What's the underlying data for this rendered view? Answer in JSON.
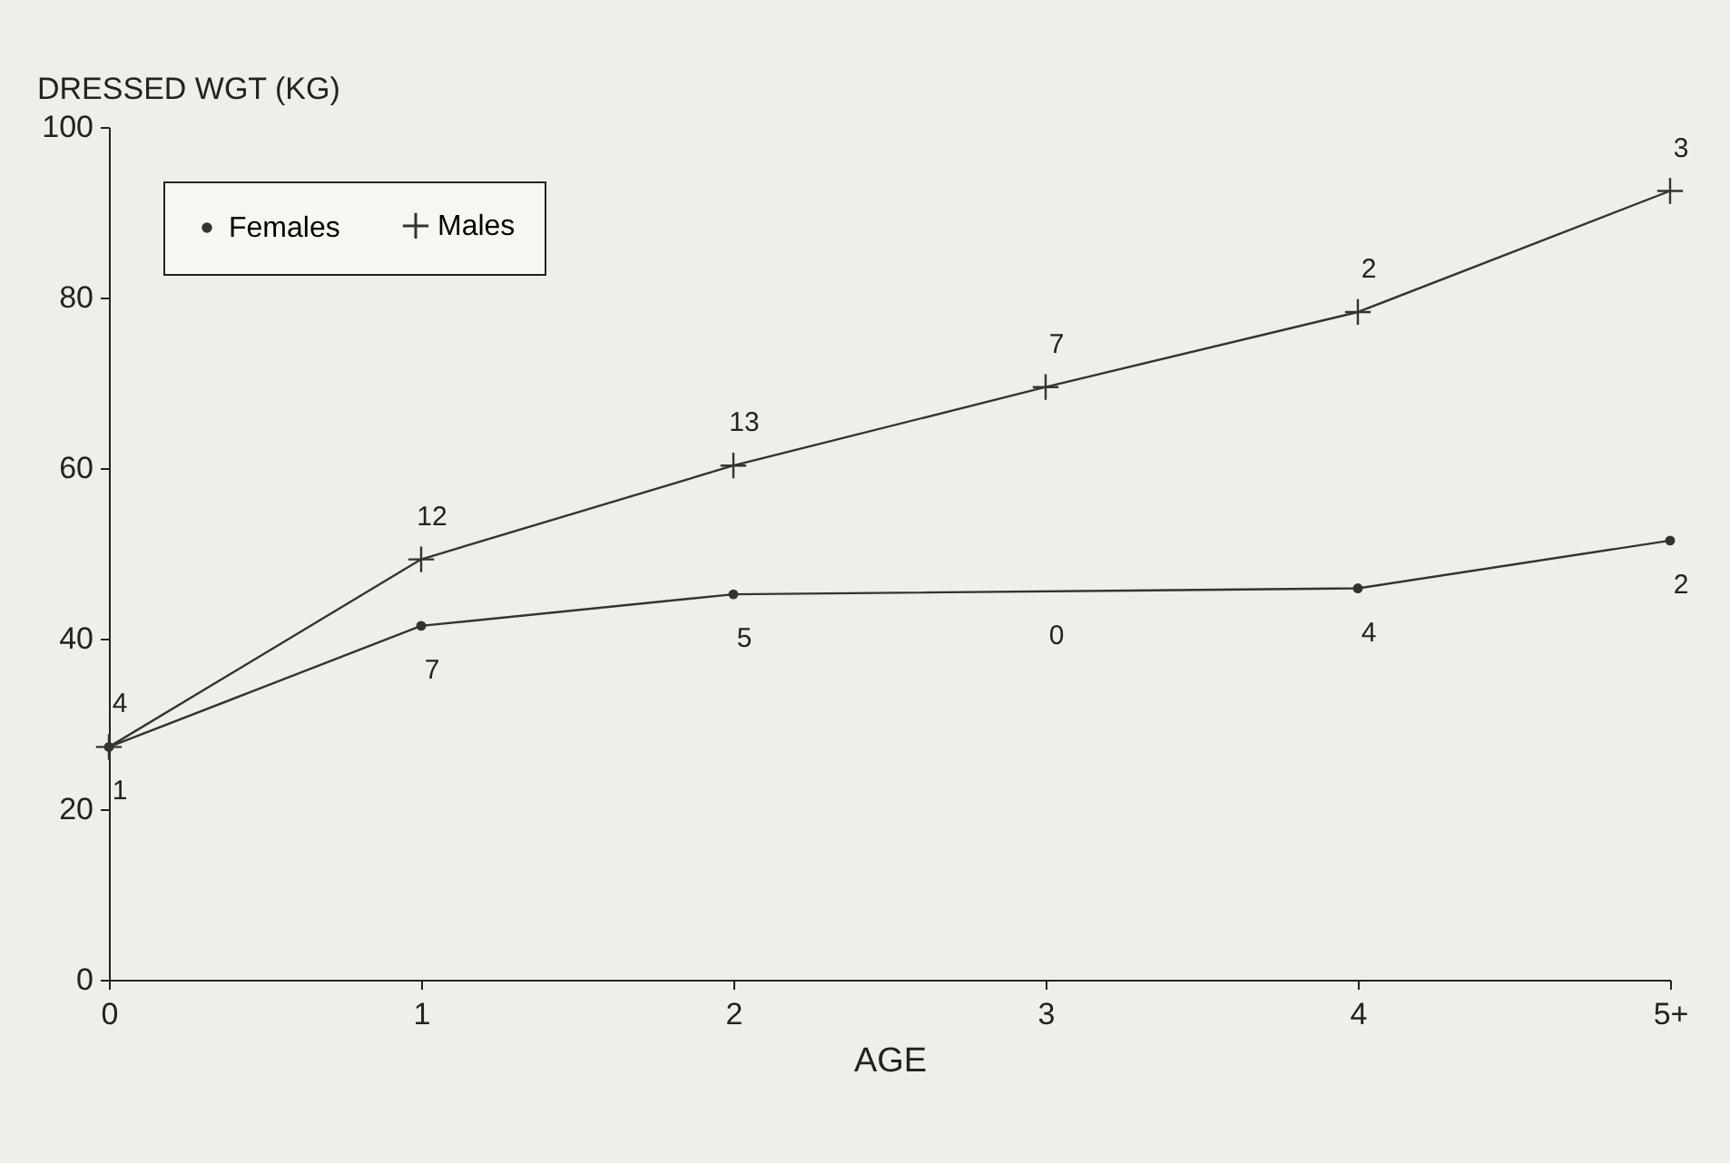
{
  "chart_data": {
    "type": "line",
    "xlabel": "AGE",
    "ylabel": "DRESSED WGT (KG)",
    "categories": [
      "0",
      "1",
      "2",
      "3",
      "4",
      "5+"
    ],
    "series": [
      {
        "name": "Females",
        "color": "#333333",
        "marker": "circle",
        "values": [
          27.3,
          41.5,
          45.2,
          null,
          45.9,
          51.5
        ]
      },
      {
        "name": "Males",
        "color": "#333333",
        "marker": "cross",
        "values": [
          27.3,
          49.3,
          60.3,
          69.5,
          78.3,
          92.5
        ]
      }
    ],
    "ylim": [
      0,
      100
    ],
    "yticks": [
      0,
      20,
      40,
      60,
      80,
      100
    ],
    "grid": false,
    "legend": "top left",
    "line_style": "solid",
    "annotations": [
      {
        "text": "1",
        "x": "0",
        "y": 27.3
      },
      {
        "text": "4",
        "x": "0",
        "y": 27.3
      },
      {
        "text": "12",
        "x": "1",
        "y": 49.3
      },
      {
        "text": "7",
        "x": "1",
        "y": 41.5
      },
      {
        "text": "13",
        "x": "2",
        "y": 60.3
      },
      {
        "text": "5",
        "x": "2",
        "y": 45.2
      },
      {
        "text": "7",
        "x": "3",
        "y": 69.5
      },
      {
        "text": "0",
        "x": "3",
        "y": 45.5
      },
      {
        "text": "2",
        "x": "4",
        "y": 78.3
      },
      {
        "text": "4",
        "x": "4",
        "y": 45.9
      },
      {
        "text": "3",
        "x": "5+",
        "y": 92.5
      },
      {
        "text": "2",
        "x": "5+",
        "y": 51.5
      }
    ]
  }
}
